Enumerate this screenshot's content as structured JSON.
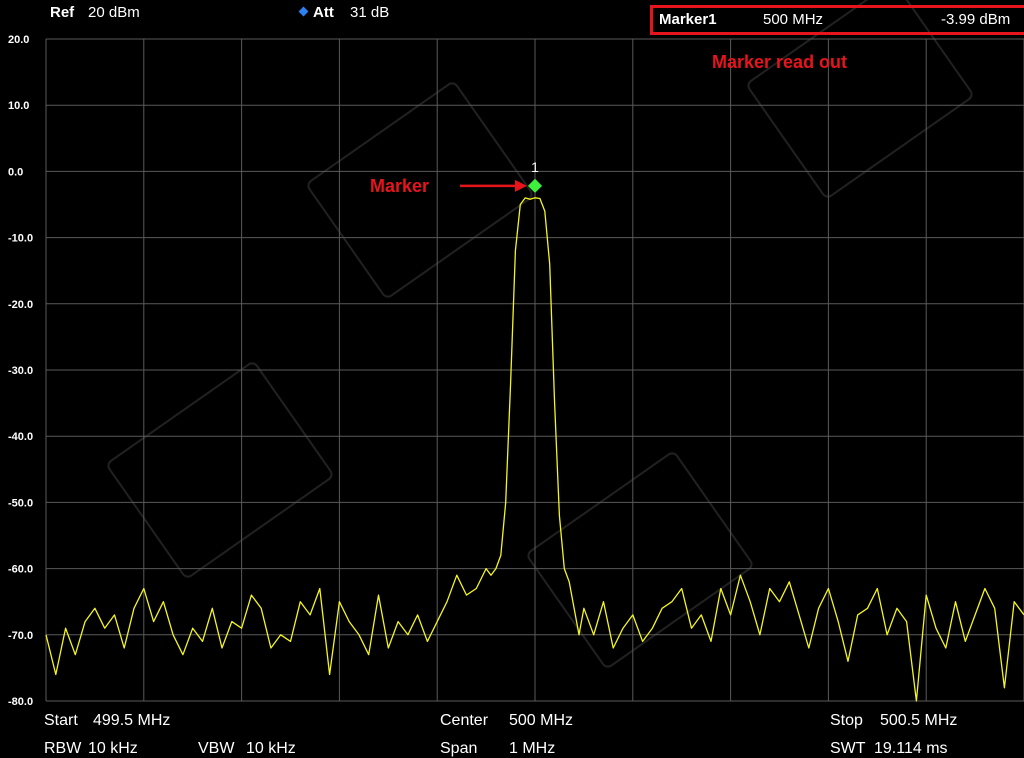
{
  "header": {
    "ref_label": "Ref",
    "ref_value": "20 dBm",
    "att_label": "Att",
    "att_value": "31 dB",
    "marker_label": "Marker1",
    "marker_freq": "500 MHz",
    "marker_level": "-3.99 dBm"
  },
  "annotations": {
    "readout_note": "Marker read out",
    "marker_note": "Marker"
  },
  "footer": {
    "start_label": "Start",
    "start_value": "499.5 MHz",
    "center_label": "Center",
    "center_value": "500 MHz",
    "stop_label": "Stop",
    "stop_value": "500.5 MHz",
    "rbw_label": "RBW",
    "rbw_value": "10 kHz",
    "vbw_label": "VBW",
    "vbw_value": "10 kHz",
    "span_label": "Span",
    "span_value": "1 MHz",
    "swt_label": "SWT",
    "swt_value": "19.114 ms"
  },
  "colors": {
    "trace": "#f5f51e",
    "marker": "#3cf03c",
    "annotation": "#e8141c",
    "grid": "#5a5a5a",
    "background": "#000000"
  },
  "chart_data": {
    "type": "line",
    "title": "",
    "xlabel": "",
    "ylabel": "",
    "xlim": [
      499.5,
      500.5
    ],
    "ylim": [
      -80,
      20
    ],
    "y_ticks": [
      "20.0",
      "10.0",
      "0.0",
      "-10.0",
      "-20.0",
      "-30.0",
      "-40.0",
      "-50.0",
      "-60.0",
      "-70.0",
      "-80.0"
    ],
    "grid": true,
    "marker": {
      "label": "1",
      "x": 500.0,
      "y": -3.99
    },
    "series": [
      {
        "x": [
          499.5,
          499.51,
          499.52,
          499.53,
          499.54,
          499.55,
          499.56,
          499.57,
          499.58,
          499.59,
          499.6,
          499.61,
          499.62,
          499.63,
          499.64,
          499.65,
          499.66,
          499.67,
          499.68,
          499.69,
          499.7,
          499.71,
          499.72,
          499.73,
          499.74,
          499.75,
          499.76,
          499.77,
          499.78,
          499.79,
          499.8,
          499.81,
          499.82,
          499.83,
          499.84,
          499.85,
          499.86,
          499.87,
          499.88,
          499.89,
          499.9,
          499.91,
          499.92,
          499.93,
          499.94,
          499.95,
          499.955,
          499.96,
          499.965,
          499.97,
          499.975,
          499.98,
          499.985,
          499.99,
          499.995,
          500.0,
          500.005,
          500.01,
          500.015,
          500.02,
          500.025,
          500.03,
          500.035,
          500.04,
          500.045,
          500.05,
          500.06,
          500.07,
          500.08,
          500.09,
          500.1,
          500.11,
          500.12,
          500.13,
          500.14,
          500.15,
          500.16,
          500.17,
          500.18,
          500.19,
          500.2,
          500.21,
          500.22,
          500.23,
          500.24,
          500.25,
          500.26,
          500.27,
          500.28,
          500.29,
          500.3,
          500.31,
          500.32,
          500.33,
          500.34,
          500.35,
          500.36,
          500.37,
          500.38,
          500.39,
          500.4,
          500.41,
          500.42,
          500.43,
          500.44,
          500.45,
          500.46,
          500.47,
          500.48,
          500.49,
          500.5
        ],
        "y": [
          -70,
          -76,
          -69,
          -73,
          -68,
          -66,
          -69,
          -67,
          -72,
          -66,
          -63,
          -68,
          -65,
          -70,
          -73,
          -69,
          -71,
          -66,
          -72,
          -68,
          -69,
          -64,
          -66,
          -72,
          -70,
          -71,
          -65,
          -67,
          -63,
          -76,
          -65,
          -68,
          -70,
          -73,
          -64,
          -72,
          -68,
          -70,
          -67,
          -71,
          -68,
          -65,
          -61,
          -64,
          -63,
          -60,
          -61,
          -60,
          -58,
          -50,
          -32,
          -12,
          -5,
          -4,
          -4.2,
          -3.99,
          -4.1,
          -6,
          -14,
          -35,
          -52,
          -60,
          -62,
          -66,
          -70,
          -66,
          -70,
          -65,
          -72,
          -69,
          -67,
          -71,
          -69,
          -66,
          -65,
          -63,
          -69,
          -67,
          -71,
          -63,
          -67,
          -61,
          -65,
          -70,
          -63,
          -65,
          -62,
          -67,
          -72,
          -66,
          -63,
          -68,
          -74,
          -67,
          -66,
          -63,
          -70,
          -66,
          -68,
          -80,
          -64,
          -69,
          -72,
          -65,
          -71,
          -67,
          -63,
          -66,
          -78,
          -65,
          -67
        ]
      }
    ]
  }
}
